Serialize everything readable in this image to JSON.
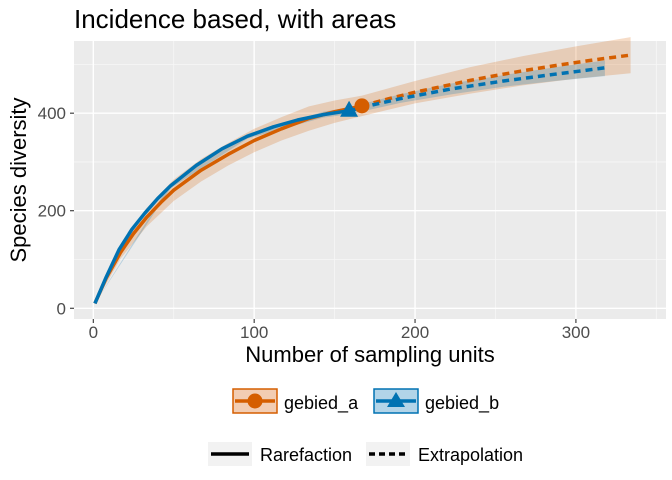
{
  "chart_data": {
    "type": "line",
    "title": "Incidence based, with areas",
    "xlabel": "Number of sampling units",
    "ylabel": "Species diversity",
    "xlim": [
      -12,
      356
    ],
    "ylim": [
      -22,
      548
    ],
    "x_ticks": [
      0,
      100,
      200,
      300
    ],
    "y_ticks": [
      0,
      200,
      400
    ],
    "x_tick_labels": [
      "0",
      "100",
      "200",
      "300"
    ],
    "y_tick_labels": [
      "0",
      "200",
      "400"
    ],
    "grid": true,
    "legend_position": "bottom",
    "series": [
      {
        "name": "gebied_a",
        "color": "#D55E00",
        "marker": "circle",
        "observed": {
          "x": 167,
          "y": 415
        },
        "rarefaction": {
          "x": [
            1,
            8,
            17,
            25,
            33,
            42,
            50,
            67,
            84,
            100,
            117,
            134,
            150,
            167
          ],
          "y": [
            10,
            62,
            115,
            153,
            186,
            217,
            242,
            283,
            316,
            344,
            368,
            389,
            403,
            415
          ]
        },
        "extrapolation": {
          "x": [
            167,
            184,
            200,
            217,
            234,
            250,
            267,
            284,
            300,
            317,
            334
          ],
          "y": [
            415,
            430,
            443,
            455,
            467,
            477,
            487,
            496,
            504,
            512,
            519
          ]
        },
        "band": {
          "x": [
            1,
            17,
            33,
            50,
            67,
            84,
            100,
            117,
            134,
            150,
            167,
            200,
            234,
            267,
            300,
            334
          ],
          "lo": [
            10,
            102,
            167,
            220,
            260,
            293,
            320,
            344,
            364,
            380,
            394,
            420,
            440,
            457,
            471,
            482
          ],
          "hi": [
            10,
            128,
            205,
            264,
            306,
            339,
            368,
            392,
            414,
            426,
            436,
            466,
            494,
            517,
            537,
            556
          ]
        }
      },
      {
        "name": "gebied_b",
        "color": "#0072B2",
        "marker": "triangle",
        "observed": {
          "x": 159,
          "y": 405
        },
        "rarefaction": {
          "x": [
            1,
            8,
            16,
            24,
            32,
            40,
            48,
            64,
            80,
            96,
            112,
            127,
            143,
            159
          ],
          "y": [
            10,
            64,
            120,
            162,
            195,
            225,
            251,
            293,
            327,
            353,
            372,
            386,
            397,
            405
          ]
        },
        "extrapolation": {
          "x": [
            159,
            175,
            191,
            207,
            223,
            239,
            255,
            271,
            287,
            302,
            318
          ],
          "y": [
            405,
            418,
            430,
            440,
            450,
            458,
            466,
            473,
            480,
            486,
            493
          ]
        },
        "band": {
          "x": [
            1,
            48,
            96,
            143,
            159,
            191,
            223,
            255,
            287,
            318
          ],
          "lo": [
            10,
            246,
            348,
            391,
            398,
            421,
            439,
            454,
            466,
            476
          ],
          "hi": [
            10,
            256,
            358,
            403,
            412,
            439,
            461,
            478,
            494,
            508
          ]
        }
      }
    ],
    "legend": {
      "groups": [
        "gebied_a",
        "gebied_b"
      ],
      "methods": [
        "Rarefaction",
        "Extrapolation"
      ]
    }
  }
}
